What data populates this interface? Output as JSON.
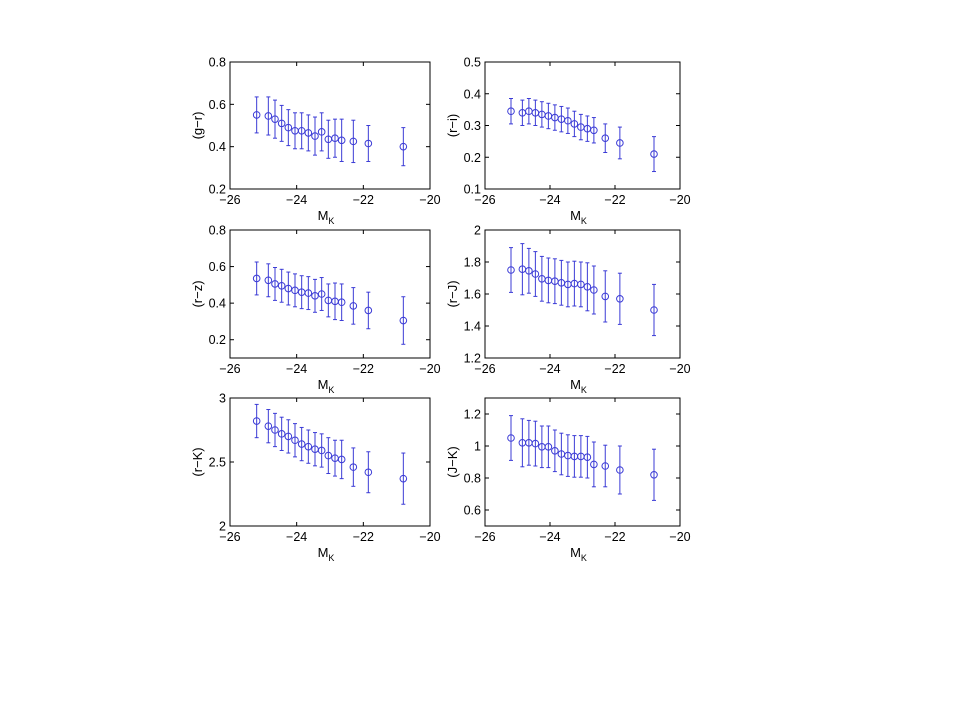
{
  "figure": {
    "marker_color": "#3b3bd6",
    "background": "#ffffff"
  },
  "chart_data": [
    {
      "type": "scatter",
      "error_bars": true,
      "marker": "open-circle",
      "xlabel": "M",
      "xlabel_sub": "K",
      "ylabel": "(g−r)",
      "xlim": [
        -26,
        -20
      ],
      "ylim": [
        0.2,
        0.8
      ],
      "xticks": [
        -26,
        -24,
        -22,
        -20
      ],
      "xtick_labels": [
        "−26",
        "−24",
        "−22",
        "−20"
      ],
      "yticks": [
        0.2,
        0.4,
        0.6,
        0.8
      ],
      "ytick_labels": [
        "0.2",
        "0.4",
        "0.6",
        "0.8"
      ],
      "grid": false,
      "x": [
        -25.2,
        -24.85,
        -24.65,
        -24.45,
        -24.25,
        -24.05,
        -23.85,
        -23.65,
        -23.45,
        -23.25,
        -23.05,
        -22.85,
        -22.65,
        -22.3,
        -21.85,
        -20.8
      ],
      "y": [
        0.55,
        0.545,
        0.53,
        0.51,
        0.49,
        0.475,
        0.475,
        0.465,
        0.45,
        0.47,
        0.435,
        0.44,
        0.43,
        0.425,
        0.415,
        0.4
      ],
      "err": [
        0.085,
        0.09,
        0.09,
        0.085,
        0.085,
        0.085,
        0.085,
        0.085,
        0.09,
        0.09,
        0.09,
        0.09,
        0.1,
        0.1,
        0.085,
        0.09
      ]
    },
    {
      "type": "scatter",
      "error_bars": true,
      "marker": "open-circle",
      "xlabel": "M",
      "xlabel_sub": "K",
      "ylabel": "(r−i)",
      "xlim": [
        -26,
        -20
      ],
      "ylim": [
        0.1,
        0.5
      ],
      "xticks": [
        -26,
        -24,
        -22,
        -20
      ],
      "xtick_labels": [
        "−26",
        "−24",
        "−22",
        "−20"
      ],
      "yticks": [
        0.1,
        0.2,
        0.3,
        0.4,
        0.5
      ],
      "ytick_labels": [
        "0.1",
        "0.2",
        "0.3",
        "0.4",
        "0.5"
      ],
      "grid": false,
      "x": [
        -25.2,
        -24.85,
        -24.65,
        -24.45,
        -24.25,
        -24.05,
        -23.85,
        -23.65,
        -23.45,
        -23.25,
        -23.05,
        -22.85,
        -22.65,
        -22.3,
        -21.85,
        -20.8
      ],
      "y": [
        0.345,
        0.34,
        0.345,
        0.34,
        0.335,
        0.33,
        0.325,
        0.32,
        0.315,
        0.305,
        0.295,
        0.29,
        0.285,
        0.26,
        0.245,
        0.21
      ],
      "err": [
        0.04,
        0.04,
        0.04,
        0.04,
        0.04,
        0.04,
        0.04,
        0.04,
        0.04,
        0.04,
        0.04,
        0.04,
        0.04,
        0.045,
        0.05,
        0.055
      ]
    },
    {
      "type": "scatter",
      "error_bars": true,
      "marker": "open-circle",
      "xlabel": "M",
      "xlabel_sub": "K",
      "ylabel": "(r−z)",
      "xlim": [
        -26,
        -20
      ],
      "ylim": [
        0.1,
        0.8
      ],
      "xticks": [
        -26,
        -24,
        -22,
        -20
      ],
      "xtick_labels": [
        "−26",
        "−24",
        "−22",
        "−20"
      ],
      "yticks": [
        0.2,
        0.4,
        0.6,
        0.8
      ],
      "ytick_labels": [
        "0.2",
        "0.4",
        "0.6",
        "0.8"
      ],
      "grid": false,
      "x": [
        -25.2,
        -24.85,
        -24.65,
        -24.45,
        -24.25,
        -24.05,
        -23.85,
        -23.65,
        -23.45,
        -23.25,
        -23.05,
        -22.85,
        -22.65,
        -22.3,
        -21.85,
        -20.8
      ],
      "y": [
        0.535,
        0.525,
        0.505,
        0.495,
        0.48,
        0.47,
        0.46,
        0.455,
        0.44,
        0.45,
        0.415,
        0.41,
        0.405,
        0.385,
        0.36,
        0.305
      ],
      "err": [
        0.09,
        0.09,
        0.09,
        0.09,
        0.09,
        0.09,
        0.09,
        0.09,
        0.09,
        0.09,
        0.09,
        0.1,
        0.1,
        0.1,
        0.1,
        0.13
      ]
    },
    {
      "type": "scatter",
      "error_bars": true,
      "marker": "open-circle",
      "xlabel": "M",
      "xlabel_sub": "K",
      "ylabel": "(r−J)",
      "xlim": [
        -26,
        -20
      ],
      "ylim": [
        1.2,
        2.0
      ],
      "xticks": [
        -26,
        -24,
        -22,
        -20
      ],
      "xtick_labels": [
        "−26",
        "−24",
        "−22",
        "−20"
      ],
      "yticks": [
        1.2,
        1.4,
        1.6,
        1.8,
        2.0
      ],
      "ytick_labels": [
        "1.2",
        "1.4",
        "1.6",
        "1.8",
        "2"
      ],
      "grid": false,
      "x": [
        -25.2,
        -24.85,
        -24.65,
        -24.45,
        -24.25,
        -24.05,
        -23.85,
        -23.65,
        -23.45,
        -23.25,
        -23.05,
        -22.85,
        -22.65,
        -22.3,
        -21.85,
        -20.8
      ],
      "y": [
        1.75,
        1.755,
        1.745,
        1.725,
        1.695,
        1.685,
        1.68,
        1.67,
        1.66,
        1.665,
        1.66,
        1.645,
        1.625,
        1.585,
        1.57,
        1.5
      ],
      "err": [
        0.14,
        0.16,
        0.14,
        0.14,
        0.14,
        0.14,
        0.14,
        0.14,
        0.14,
        0.14,
        0.14,
        0.15,
        0.15,
        0.16,
        0.16,
        0.16
      ]
    },
    {
      "type": "scatter",
      "error_bars": true,
      "marker": "open-circle",
      "xlabel": "M",
      "xlabel_sub": "K",
      "ylabel": "(r−K)",
      "xlim": [
        -26,
        -20
      ],
      "ylim": [
        2.0,
        3.0
      ],
      "xticks": [
        -26,
        -24,
        -22,
        -20
      ],
      "xtick_labels": [
        "−26",
        "−24",
        "−22",
        "−20"
      ],
      "yticks": [
        2.0,
        2.5,
        3.0
      ],
      "ytick_labels": [
        "2",
        "2.5",
        "3"
      ],
      "grid": false,
      "x": [
        -25.2,
        -24.85,
        -24.65,
        -24.45,
        -24.25,
        -24.05,
        -23.85,
        -23.65,
        -23.45,
        -23.25,
        -23.05,
        -22.85,
        -22.65,
        -22.3,
        -21.85,
        -20.8
      ],
      "y": [
        2.82,
        2.78,
        2.75,
        2.72,
        2.7,
        2.67,
        2.64,
        2.62,
        2.6,
        2.59,
        2.55,
        2.53,
        2.52,
        2.46,
        2.42,
        2.37
      ],
      "err": [
        0.13,
        0.13,
        0.13,
        0.13,
        0.13,
        0.13,
        0.13,
        0.13,
        0.13,
        0.13,
        0.14,
        0.14,
        0.15,
        0.15,
        0.16,
        0.2
      ]
    },
    {
      "type": "scatter",
      "error_bars": true,
      "marker": "open-circle",
      "xlabel": "M",
      "xlabel_sub": "K",
      "ylabel": "(J−K)",
      "xlim": [
        -26,
        -20
      ],
      "ylim": [
        0.5,
        1.3
      ],
      "xticks": [
        -26,
        -24,
        -22,
        -20
      ],
      "xtick_labels": [
        "−26",
        "−24",
        "−22",
        "−20"
      ],
      "yticks": [
        0.6,
        0.8,
        1.0,
        1.2
      ],
      "ytick_labels": [
        "0.6",
        "0.8",
        "1",
        "1.2"
      ],
      "grid": false,
      "x": [
        -25.2,
        -24.85,
        -24.65,
        -24.45,
        -24.25,
        -24.05,
        -23.85,
        -23.65,
        -23.45,
        -23.25,
        -23.05,
        -22.85,
        -22.65,
        -22.3,
        -21.85,
        -20.8
      ],
      "y": [
        1.05,
        1.02,
        1.02,
        1.015,
        0.995,
        0.995,
        0.97,
        0.95,
        0.94,
        0.935,
        0.935,
        0.93,
        0.885,
        0.875,
        0.85,
        0.82
      ],
      "err": [
        0.14,
        0.15,
        0.14,
        0.14,
        0.13,
        0.13,
        0.13,
        0.13,
        0.13,
        0.13,
        0.13,
        0.13,
        0.14,
        0.13,
        0.15,
        0.16
      ]
    }
  ]
}
